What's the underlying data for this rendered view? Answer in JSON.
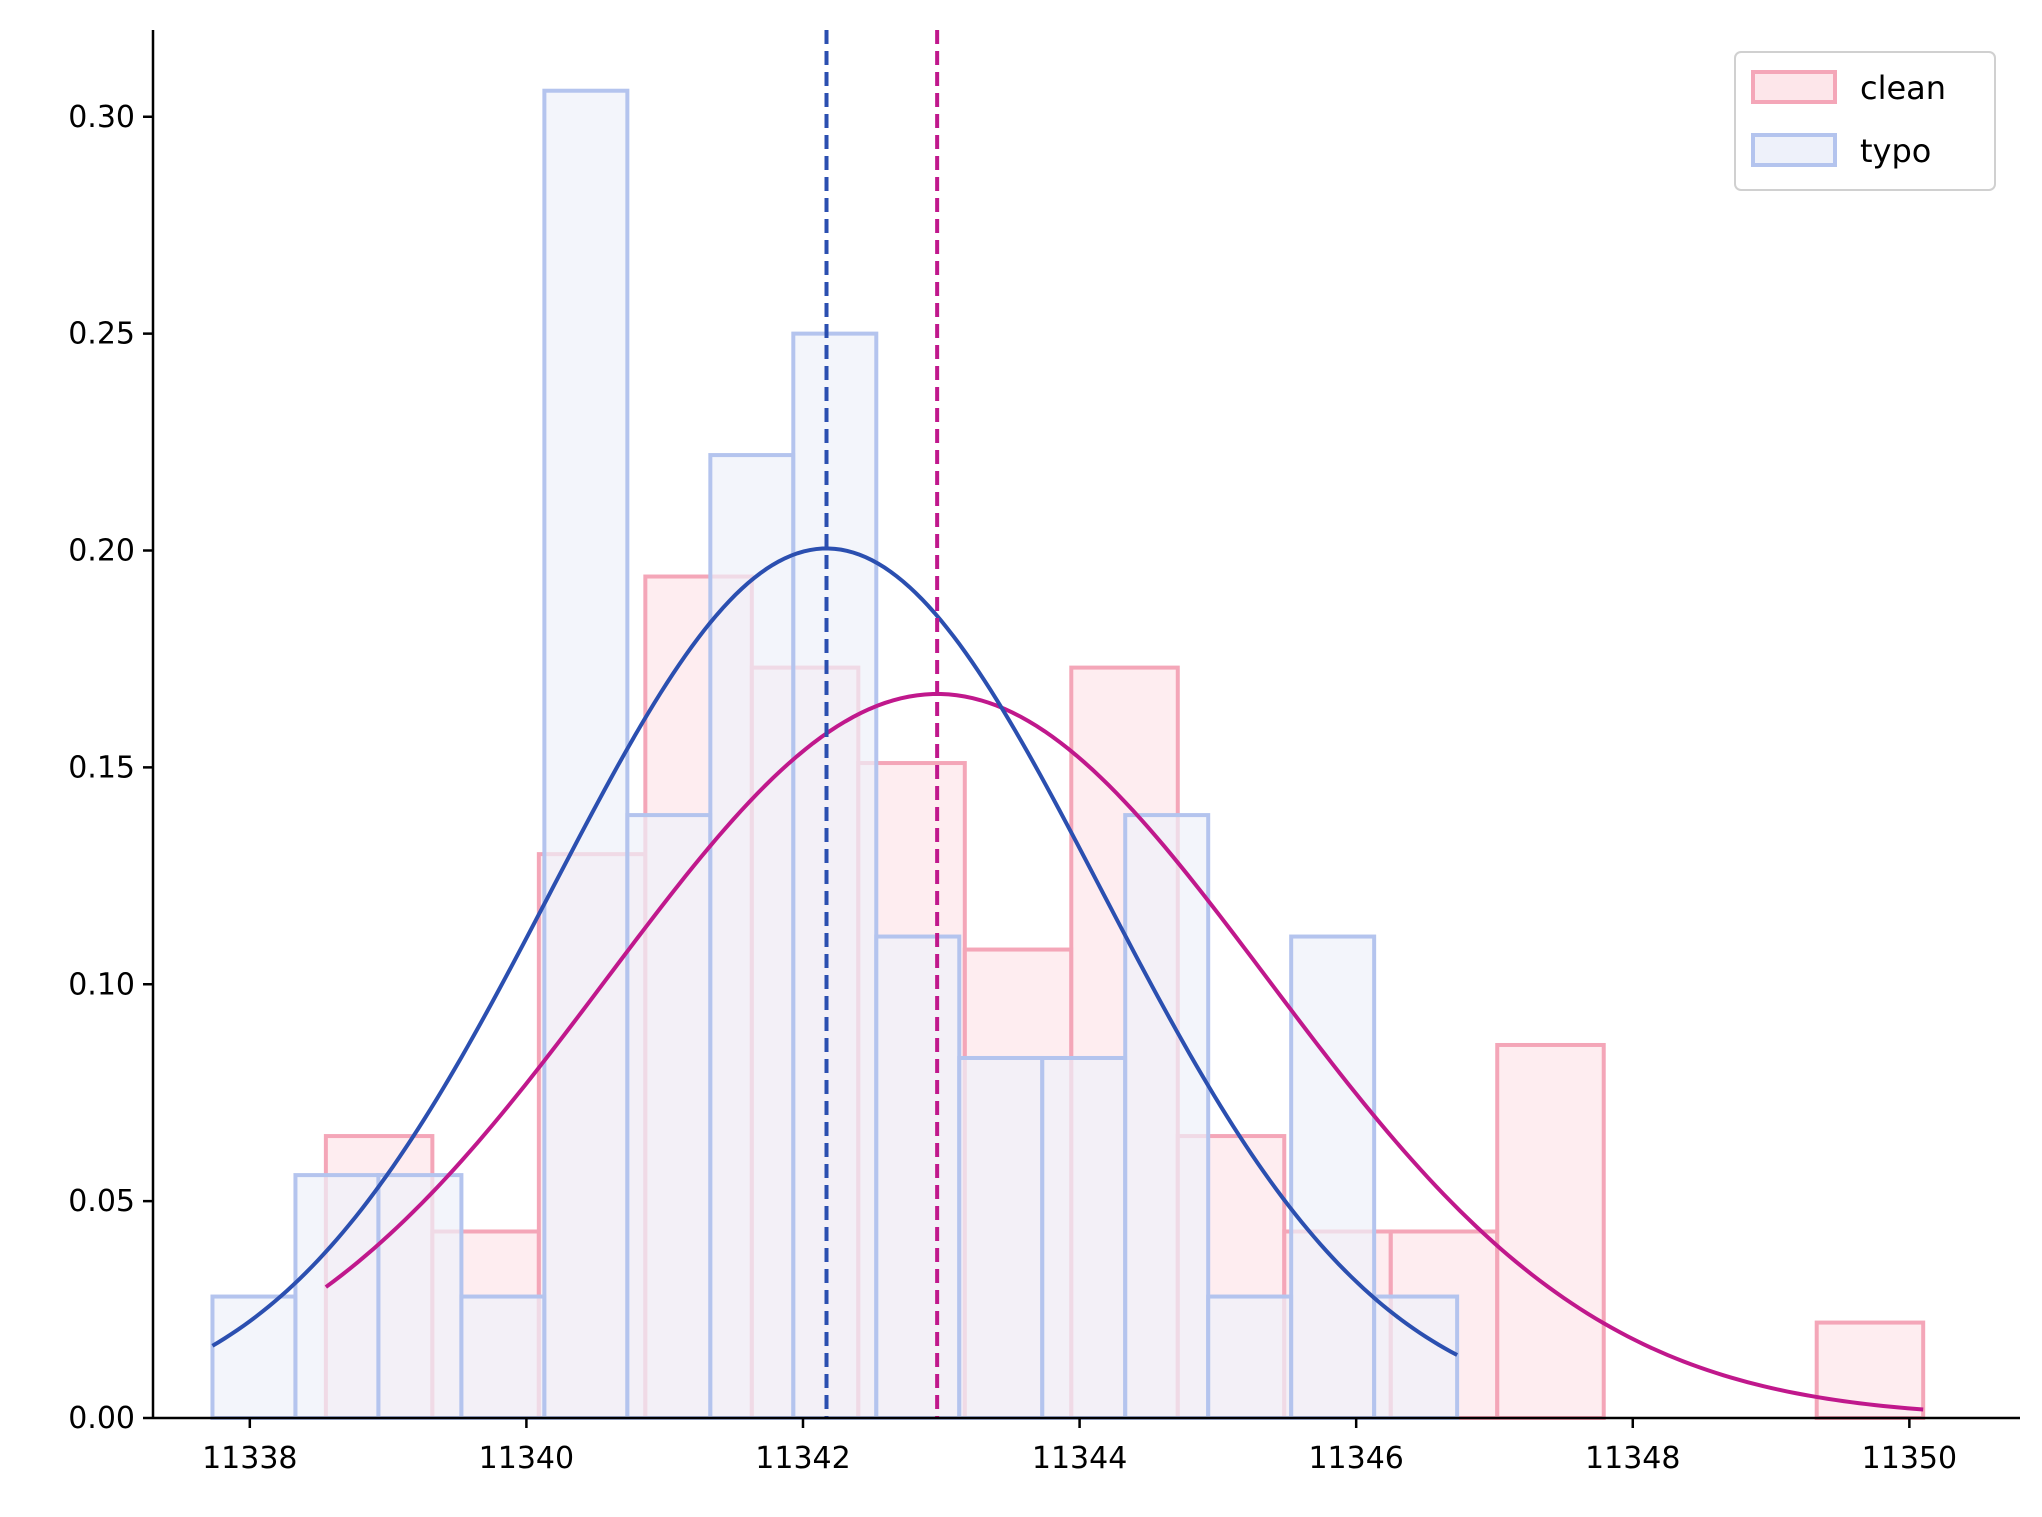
{
  "chart_data": {
    "type": "bar",
    "title": "",
    "xlabel": "",
    "ylabel": "",
    "xlim": [
      11337.3,
      11350.8
    ],
    "ylim": [
      0,
      0.32
    ],
    "xticks": [
      11338,
      11340,
      11342,
      11344,
      11346,
      11348,
      11350
    ],
    "yticks": [
      0.0,
      0.05,
      0.1,
      0.15,
      0.2,
      0.25,
      0.3
    ],
    "xtick_labels": [
      "11338",
      "11340",
      "11342",
      "11344",
      "11346",
      "11348",
      "11350"
    ],
    "ytick_labels": [
      "0.00",
      "0.05",
      "0.10",
      "0.15",
      "0.20",
      "0.25",
      "0.30"
    ],
    "grid": false,
    "legend_position": "top-right",
    "series": [
      {
        "name": "clean",
        "kind": "histogram",
        "color": "#f4a6b8",
        "fill": "#fde6ea",
        "bins": [
          {
            "x0": 11338.55,
            "x1": 11339.32,
            "density": 0.065
          },
          {
            "x0": 11339.32,
            "x1": 11340.09,
            "density": 0.043
          },
          {
            "x0": 11340.09,
            "x1": 11340.86,
            "density": 0.13
          },
          {
            "x0": 11340.86,
            "x1": 11341.63,
            "density": 0.194
          },
          {
            "x0": 11341.63,
            "x1": 11342.4,
            "density": 0.173
          },
          {
            "x0": 11342.4,
            "x1": 11343.17,
            "density": 0.151
          },
          {
            "x0": 11343.17,
            "x1": 11343.94,
            "density": 0.108
          },
          {
            "x0": 11343.94,
            "x1": 11344.71,
            "density": 0.173
          },
          {
            "x0": 11344.71,
            "x1": 11345.48,
            "density": 0.065
          },
          {
            "x0": 11345.48,
            "x1": 11346.25,
            "density": 0.043
          },
          {
            "x0": 11346.25,
            "x1": 11347.02,
            "density": 0.043
          },
          {
            "x0": 11347.02,
            "x1": 11347.79,
            "density": 0.086
          },
          {
            "x0": 11347.79,
            "x1": 11348.56,
            "density": 0.0
          },
          {
            "x0": 11348.56,
            "x1": 11349.33,
            "density": 0.0
          },
          {
            "x0": 11349.33,
            "x1": 11350.1,
            "density": 0.022
          }
        ],
        "mean": 11342.97,
        "fit": {
          "mean": 11342.97,
          "std": 2.39,
          "x_range": [
            11338.55,
            11350.1
          ]
        }
      },
      {
        "name": "typo",
        "kind": "histogram",
        "color": "#b4c4ee",
        "fill": "#eef1fa",
        "bins": [
          {
            "x0": 11337.73,
            "x1": 11338.33,
            "density": 0.028
          },
          {
            "x0": 11338.33,
            "x1": 11338.93,
            "density": 0.056
          },
          {
            "x0": 11338.93,
            "x1": 11339.53,
            "density": 0.056
          },
          {
            "x0": 11339.53,
            "x1": 11340.13,
            "density": 0.028
          },
          {
            "x0": 11340.13,
            "x1": 11340.73,
            "density": 0.306
          },
          {
            "x0": 11340.73,
            "x1": 11341.33,
            "density": 0.139
          },
          {
            "x0": 11341.33,
            "x1": 11341.93,
            "density": 0.222
          },
          {
            "x0": 11341.93,
            "x1": 11342.53,
            "density": 0.25
          },
          {
            "x0": 11342.53,
            "x1": 11343.13,
            "density": 0.111
          },
          {
            "x0": 11343.13,
            "x1": 11343.73,
            "density": 0.083
          },
          {
            "x0": 11343.73,
            "x1": 11344.33,
            "density": 0.083
          },
          {
            "x0": 11344.33,
            "x1": 11344.93,
            "density": 0.139
          },
          {
            "x0": 11344.93,
            "x1": 11345.53,
            "density": 0.028
          },
          {
            "x0": 11345.53,
            "x1": 11346.13,
            "density": 0.111
          },
          {
            "x0": 11346.13,
            "x1": 11346.73,
            "density": 0.028
          }
        ],
        "mean": 11342.17,
        "fit": {
          "mean": 11342.17,
          "std": 1.99,
          "x_range": [
            11337.73,
            11346.73
          ]
        }
      }
    ],
    "fit_line_colors": {
      "clean": "#c0188c",
      "typo": "#2b4fb0"
    }
  }
}
